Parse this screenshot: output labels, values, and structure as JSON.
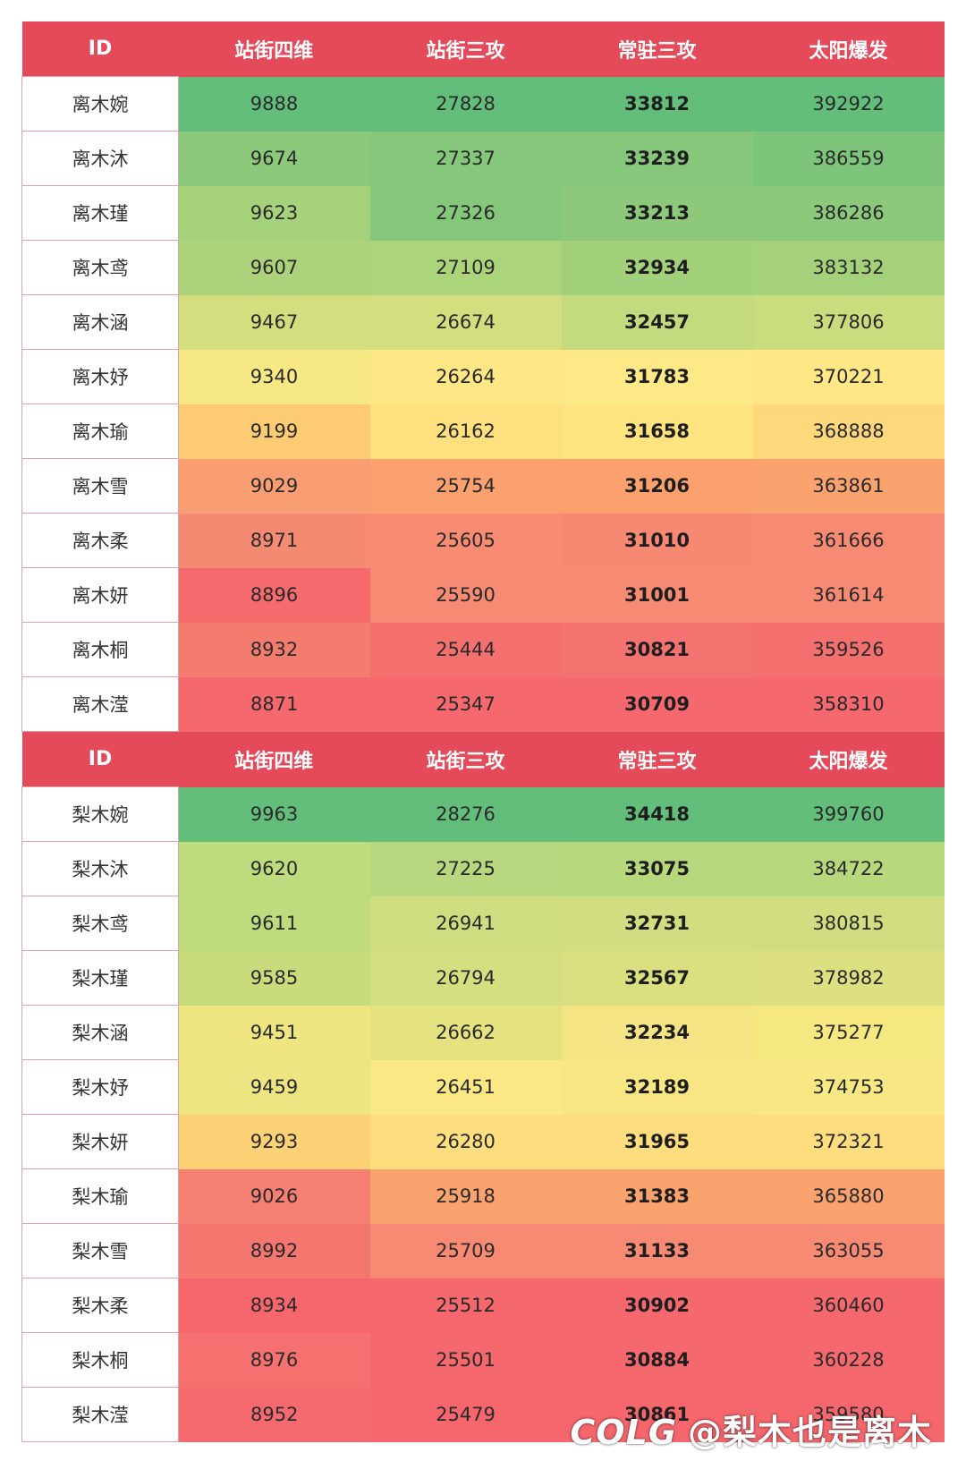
{
  "columns": [
    "ID",
    "站街四维",
    "站街三攻",
    "常驻三攻",
    "太阳爆发"
  ],
  "tables": [
    {
      "rows": [
        {
          "id": "离木婉",
          "values": [
            "9888",
            "27828",
            "33812",
            "392922"
          ],
          "colors": [
            "#63be7b",
            "#63be7b",
            "#63be7b",
            "#63be7b"
          ]
        },
        {
          "id": "离木沐",
          "values": [
            "9674",
            "27337",
            "33239",
            "386559"
          ],
          "colors": [
            "#8cc97b",
            "#85c77b",
            "#86c77b",
            "#7dc57b"
          ]
        },
        {
          "id": "离木瑾",
          "values": [
            "9623",
            "27326",
            "33213",
            "386286"
          ],
          "colors": [
            "#a6d27b",
            "#85c77b",
            "#8ec97b",
            "#8cc97b"
          ]
        },
        {
          "id": "离木鸢",
          "values": [
            "9607",
            "27109",
            "32934",
            "383132"
          ],
          "colors": [
            "#acd27b",
            "#abd47b",
            "#a3d17b",
            "#a5d17b"
          ]
        },
        {
          "id": "离木涵",
          "values": [
            "9467",
            "26674",
            "32457",
            "377806"
          ],
          "colors": [
            "#d4de7e",
            "#d4de7e",
            "#c3da7e",
            "#c9dc7e"
          ]
        },
        {
          "id": "离木妤",
          "values": [
            "9340",
            "26264",
            "31783",
            "370221"
          ],
          "colors": [
            "#f6e884",
            "#fee784",
            "#fde985",
            "#fee784"
          ]
        },
        {
          "id": "离木瑜",
          "values": [
            "9199",
            "26162",
            "31658",
            "368888"
          ],
          "colors": [
            "#fdcb71",
            "#fee07f",
            "#fee37e",
            "#fed87a"
          ]
        },
        {
          "id": "离木雪",
          "values": [
            "9029",
            "25754",
            "31206",
            "363861"
          ],
          "colors": [
            "#f89e72",
            "#fba06f",
            "#fca16e",
            "#fba36f"
          ]
        },
        {
          "id": "离木柔",
          "values": [
            "8971",
            "25605",
            "31010",
            "361666"
          ],
          "colors": [
            "#f58a72",
            "#f78c72",
            "#f78972",
            "#f68a72"
          ]
        },
        {
          "id": "离木妍",
          "values": [
            "8896",
            "25590",
            "31001",
            "361614"
          ],
          "colors": [
            "#f56b6e",
            "#f68a72",
            "#f68a72",
            "#f68a72"
          ]
        },
        {
          "id": "离木桐",
          "values": [
            "8932",
            "25444",
            "30821",
            "359526"
          ],
          "colors": [
            "#f47c6f",
            "#f4706e",
            "#f47370",
            "#f4706e"
          ]
        },
        {
          "id": "离木滢",
          "values": [
            "8871",
            "25347",
            "30709",
            "358310"
          ],
          "colors": [
            "#f5696e",
            "#f5686e",
            "#f5696e",
            "#f5686e"
          ]
        }
      ]
    },
    {
      "rows": [
        {
          "id": "梨木婉",
          "values": [
            "9963",
            "28276",
            "34418",
            "399760"
          ],
          "colors": [
            "#63be7b",
            "#63be7b",
            "#63be7b",
            "#63be7b"
          ]
        },
        {
          "id": "梨木沐",
          "values": [
            "9620",
            "27225",
            "33075",
            "384722"
          ],
          "colors": [
            "#bedb7e",
            "#b7d87e",
            "#b8d87e",
            "#b8d87e"
          ]
        },
        {
          "id": "梨木鸢",
          "values": [
            "9611",
            "26941",
            "32731",
            "380815"
          ],
          "colors": [
            "#bedb7e",
            "#cfdd80",
            "#d1dd80",
            "#d1dd80"
          ]
        },
        {
          "id": "梨木瑾",
          "values": [
            "9585",
            "26794",
            "32567",
            "378982"
          ],
          "colors": [
            "#c8dc7e",
            "#d6df80",
            "#dadf80",
            "#dde080"
          ]
        },
        {
          "id": "梨木涵",
          "values": [
            "9451",
            "26662",
            "32234",
            "375277"
          ],
          "colors": [
            "#f0e681",
            "#e4e380",
            "#f5e483",
            "#f6e881"
          ]
        },
        {
          "id": "梨木妤",
          "values": [
            "9459",
            "26451",
            "32189",
            "374753"
          ],
          "colors": [
            "#ece581",
            "#f9e883",
            "#f7e682",
            "#f8e883"
          ]
        },
        {
          "id": "梨木妍",
          "values": [
            "9293",
            "26280",
            "31965",
            "372321"
          ],
          "colors": [
            "#fdd276",
            "#fedf7f",
            "#fddd7e",
            "#fddd7e"
          ]
        },
        {
          "id": "梨木瑜",
          "values": [
            "9026",
            "25918",
            "31383",
            "365880"
          ],
          "colors": [
            "#f57f71",
            "#fba36f",
            "#fba36f",
            "#fba36f"
          ]
        },
        {
          "id": "梨木雪",
          "values": [
            "8992",
            "25709",
            "31133",
            "363055"
          ],
          "colors": [
            "#f4776f",
            "#f68a72",
            "#f68a72",
            "#f68a72"
          ]
        },
        {
          "id": "梨木柔",
          "values": [
            "8934",
            "25512",
            "30902",
            "360460"
          ],
          "colors": [
            "#f5666d",
            "#f5686e",
            "#f5686e",
            "#f5686e"
          ]
        },
        {
          "id": "梨木桐",
          "values": [
            "8976",
            "25501",
            "30884",
            "360228"
          ],
          "colors": [
            "#f5716f",
            "#f5686e",
            "#f5686e",
            "#f5686e"
          ]
        },
        {
          "id": "梨木滢",
          "values": [
            "8952",
            "25479",
            "30861",
            "359580"
          ],
          "colors": [
            "#f56a6e",
            "#f5666d",
            "#f5666d",
            "#f5666d"
          ]
        }
      ]
    }
  ],
  "watermark": {
    "logo": "COLG",
    "handle": "@梨木也是离木"
  }
}
